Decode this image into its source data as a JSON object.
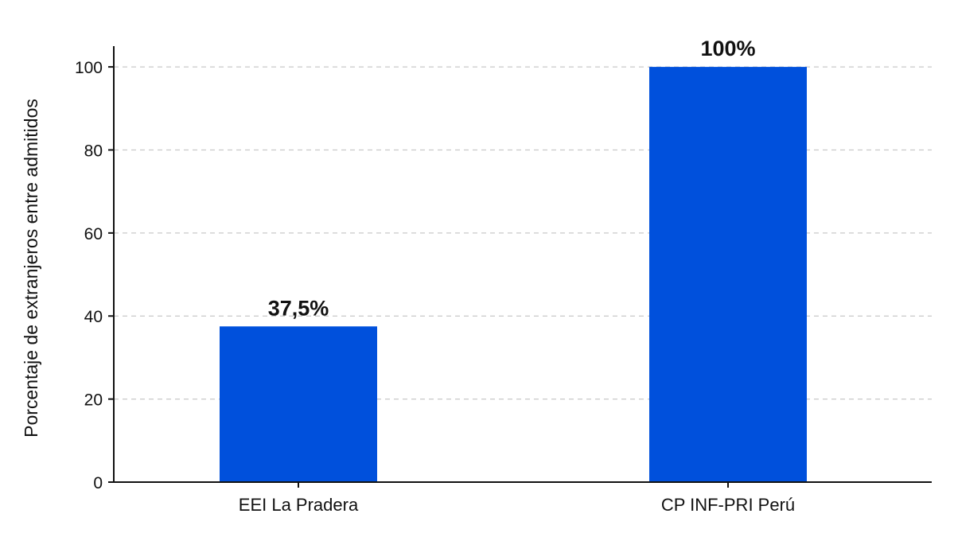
{
  "chart_data": {
    "type": "bar",
    "categories": [
      "EEI La Pradera",
      "CP INF-PRI Perú"
    ],
    "values": [
      37.5,
      100
    ],
    "data_labels": [
      "37,5%",
      "100%"
    ],
    "title": "",
    "xlabel": "",
    "ylabel": "Porcentaje de extranjeros entre admitidos",
    "ylim": [
      0,
      105
    ],
    "yticks": [
      0,
      20,
      40,
      60,
      80,
      100
    ],
    "grid": "horizontal-dashed",
    "bar_color": "#0050dc",
    "legend": "none"
  }
}
